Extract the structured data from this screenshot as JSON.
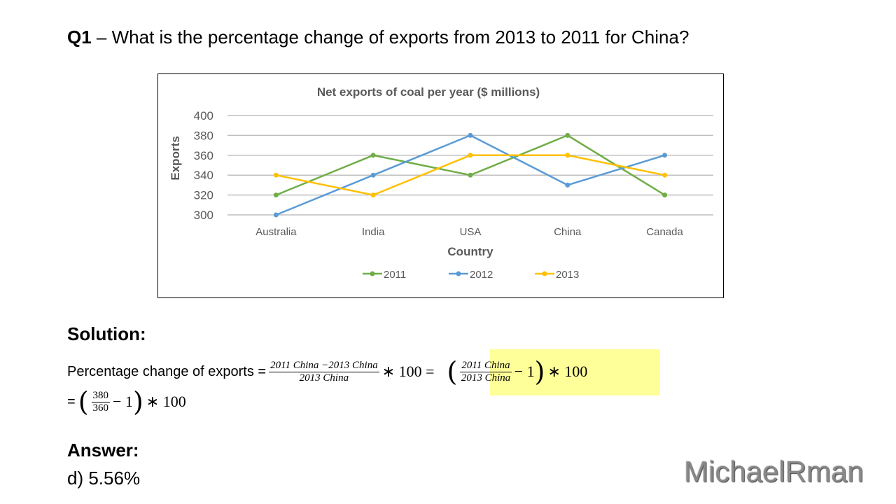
{
  "question": {
    "label": "Q1",
    "text": "– What is the percentage change of exports from 2013 to 2011 for China?"
  },
  "chart_data": {
    "type": "line",
    "title": "Net exports of coal per year ($ millions)",
    "xlabel": "Country",
    "ylabel": "Exports",
    "categories": [
      "Australia",
      "India",
      "USA",
      "China",
      "Canada"
    ],
    "ylim": [
      300,
      400
    ],
    "yticks": [
      "300",
      "320",
      "340",
      "360",
      "380",
      "400"
    ],
    "grid": true,
    "legend": "bottom",
    "series": [
      {
        "name": "2011",
        "color": "#70ad47",
        "values": [
          320,
          360,
          340,
          380,
          320
        ]
      },
      {
        "name": "2012",
        "color": "#5b9bd5",
        "values": [
          300,
          340,
          380,
          330,
          360
        ]
      },
      {
        "name": "2013",
        "color": "#ffc000",
        "values": [
          340,
          320,
          360,
          360,
          340
        ]
      }
    ]
  },
  "solution": {
    "heading": "Solution:",
    "lead": "Percentage change of exports =",
    "f1_num": "2011 China −2013 China",
    "f1_den": "2013 China",
    "times100": "∗ 100 =",
    "f2_num": "2011 China",
    "f2_den": "2013 China",
    "minus1": "− 1",
    "times100b": "∗ 100",
    "eq2_lead": "=",
    "f3_num": "380",
    "f3_den": "360",
    "minus1b": "− 1",
    "times100c": "∗ 100"
  },
  "answer": {
    "heading": "Answer:",
    "value": "d) 5.56%"
  },
  "watermark": "MichaelRman"
}
